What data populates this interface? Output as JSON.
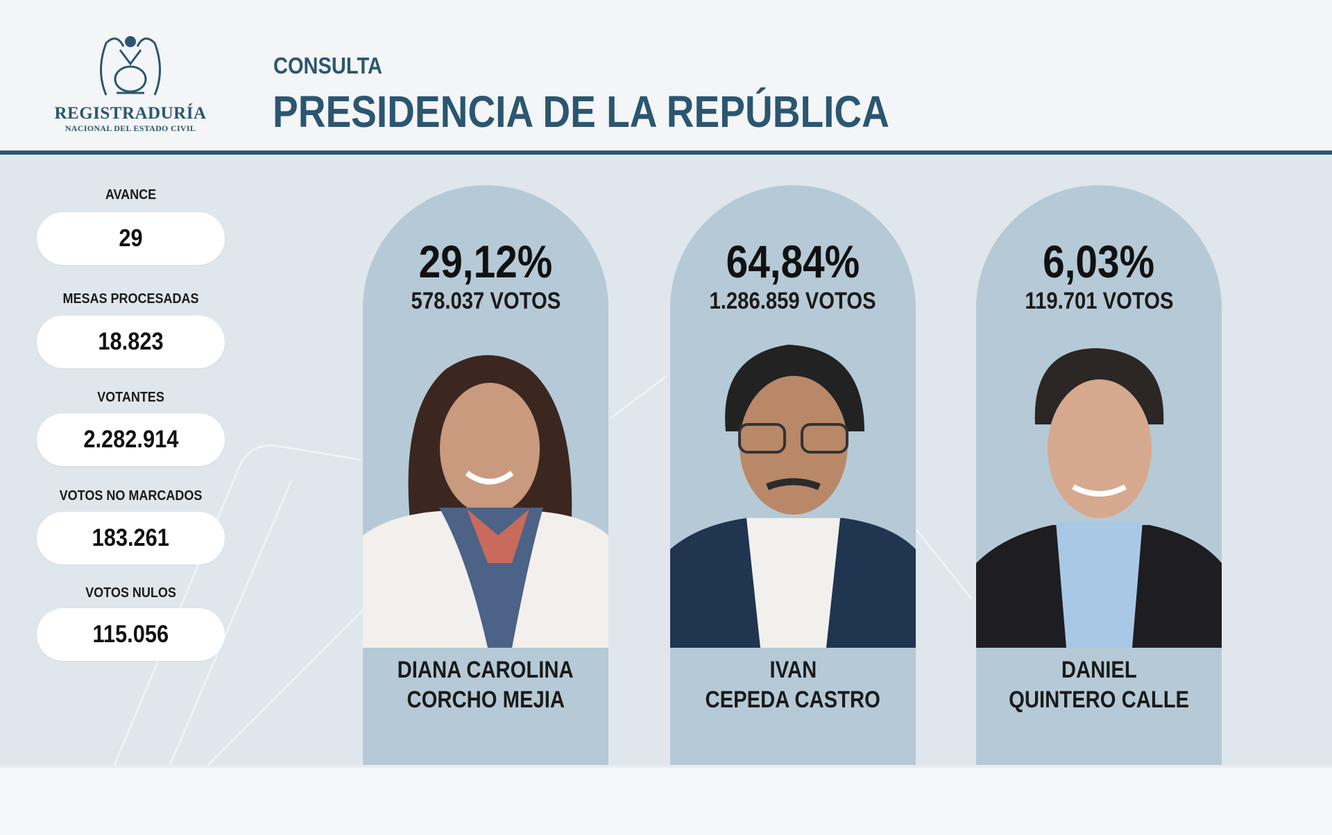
{
  "header": {
    "logo": {
      "line1": "REGISTRADURÍA",
      "line2": "NACIONAL DEL ESTADO CIVIL"
    },
    "subtitle": "CONSULTA",
    "title": "PRESIDENCIA DE LA REPÚBLICA"
  },
  "stats": [
    {
      "label": "AVANCE",
      "value": "29"
    },
    {
      "label": "MESAS PROCESADAS",
      "value": "18.823"
    },
    {
      "label": "VOTANTES",
      "value": "2.282.914"
    },
    {
      "label": "VOTOS NO MARCADOS",
      "value": "183.261"
    },
    {
      "label": "VOTOS NULOS",
      "value": "115.056"
    }
  ],
  "candidates": [
    {
      "percent": "29,12%",
      "votes": "578.037 VOTOS",
      "name_line1": "DIANA CAROLINA",
      "name_line2": "CORCHO MEJIA"
    },
    {
      "percent": "64,84%",
      "votes": "1.286.859 VOTOS",
      "name_line1": "IVAN",
      "name_line2": "CEPEDA CASTRO"
    },
    {
      "percent": "6,03%",
      "votes": "119.701 VOTOS",
      "name_line1": "DANIEL",
      "name_line2": "QUINTERO CALLE"
    }
  ],
  "colors": {
    "brand": "#2b5670",
    "panel": "#dfe7ec",
    "card": "#b5cad6"
  }
}
